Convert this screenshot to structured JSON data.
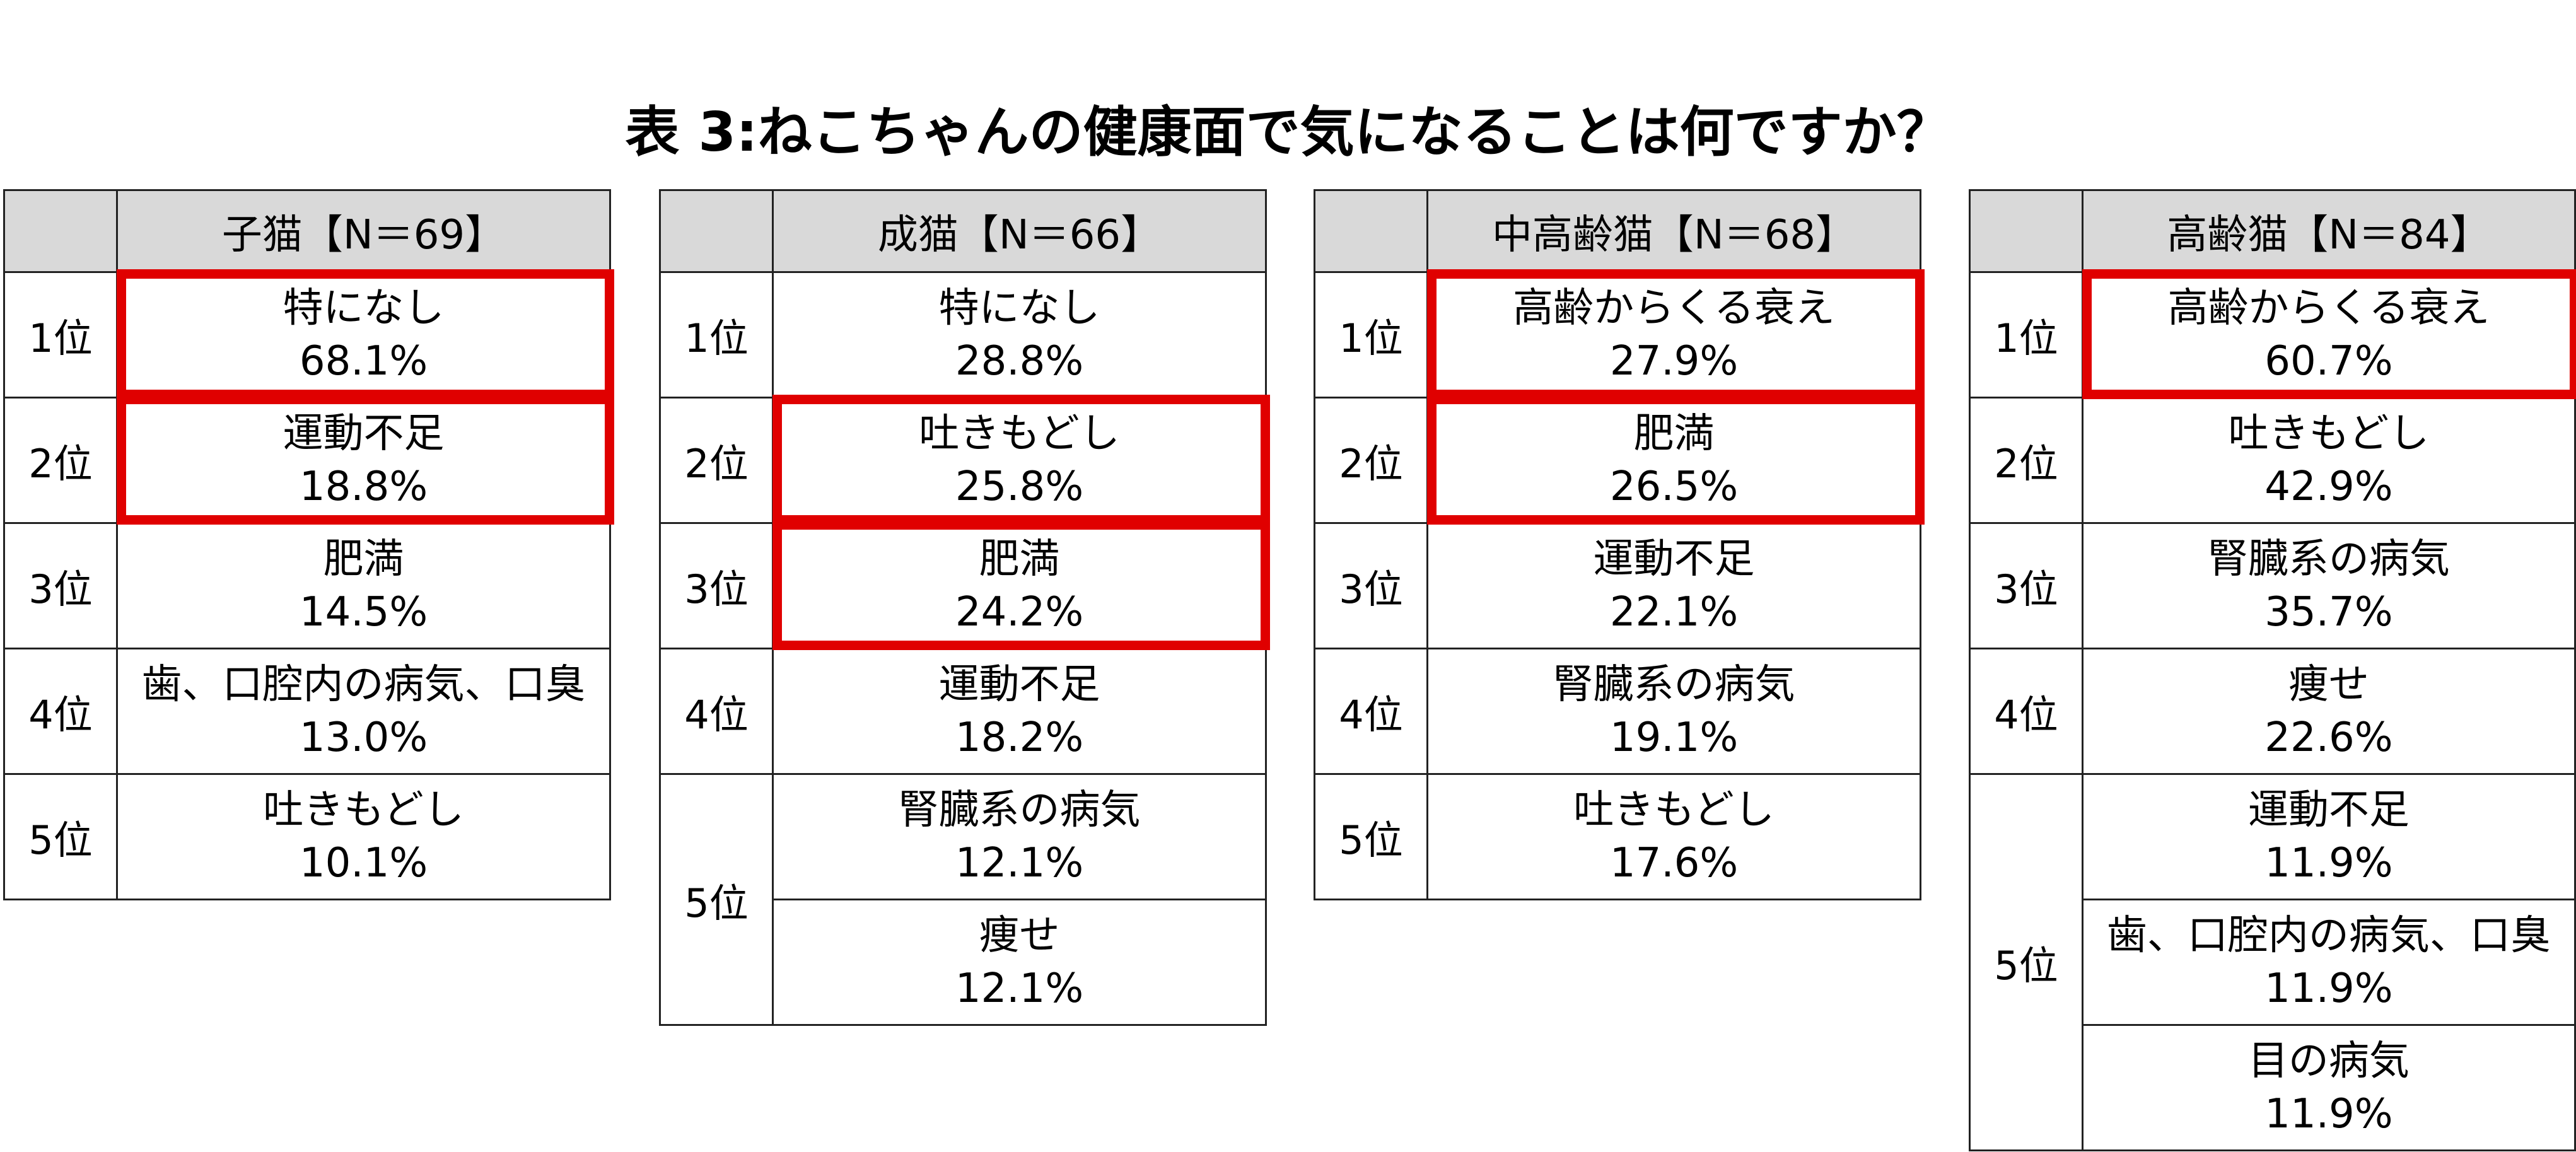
{
  "title": "表 3:ねこちゃんの健康面で気になることは何ですか？",
  "tables": [
    {
      "header": "子猫【N＝69】",
      "rows": [
        {
          "rank": "1位",
          "item": "特になし",
          "pct": "68.1%",
          "highlight": true
        },
        {
          "rank": "2位",
          "item": "運動不足",
          "pct": "18.8%",
          "highlight": true
        },
        {
          "rank": "3位",
          "item": "肥満",
          "pct": "14.5%",
          "highlight": false
        },
        {
          "rank": "4位",
          "item": "歯、口腔内の病気、口臭",
          "pct": "13.0%",
          "highlight": false
        },
        {
          "rank": "5位",
          "item": "吐きもどし",
          "pct": "10.1%",
          "highlight": false
        }
      ]
    },
    {
      "header": "成猫【N＝66】",
      "rows": [
        {
          "rank": "1位",
          "item": "特になし",
          "pct": "28.8%",
          "highlight": false
        },
        {
          "rank": "2位",
          "item": "吐きもどし",
          "pct": "25.8%",
          "highlight": true
        },
        {
          "rank": "3位",
          "item": "肥満",
          "pct": "24.2%",
          "highlight": true
        },
        {
          "rank": "4位",
          "item": "運動不足",
          "pct": "18.2%",
          "highlight": false
        },
        {
          "rank": "5位",
          "item": "腎臓系の病気",
          "pct": "12.1%",
          "highlight": false
        },
        {
          "rank": "5位",
          "item": "痩せ",
          "pct": "12.1%",
          "highlight": false
        }
      ]
    },
    {
      "header": "中高齢猫【N＝68】",
      "rows": [
        {
          "rank": "1位",
          "item": "高齢からくる衰え",
          "pct": "27.9%",
          "highlight": true
        },
        {
          "rank": "2位",
          "item": "肥満",
          "pct": "26.5%",
          "highlight": true
        },
        {
          "rank": "3位",
          "item": "運動不足",
          "pct": "22.1%",
          "highlight": false
        },
        {
          "rank": "4位",
          "item": "腎臓系の病気",
          "pct": "19.1%",
          "highlight": false
        },
        {
          "rank": "5位",
          "item": "吐きもどし",
          "pct": "17.6%",
          "highlight": false
        }
      ]
    },
    {
      "header": "高齢猫【N＝84】",
      "rows": [
        {
          "rank": "1位",
          "item": "高齢からくる衰え",
          "pct": "60.7%",
          "highlight": true
        },
        {
          "rank": "2位",
          "item": "吐きもどし",
          "pct": "42.9%",
          "highlight": false
        },
        {
          "rank": "3位",
          "item": "腎臓系の病気",
          "pct": "35.7%",
          "highlight": false
        },
        {
          "rank": "4位",
          "item": "痩せ",
          "pct": "22.6%",
          "highlight": false
        },
        {
          "rank": "5位",
          "item": "運動不足",
          "pct": "11.9%",
          "highlight": false
        },
        {
          "rank": "5位",
          "item": "歯、口腔内の病気、口臭",
          "pct": "11.9%",
          "highlight": false
        },
        {
          "rank": "5位",
          "item": "目の病気",
          "pct": "11.9%",
          "highlight": false
        }
      ]
    }
  ],
  "colors": {
    "highlight": "#e00000",
    "header_bg": "#d9d9d9",
    "border": "#222222"
  }
}
